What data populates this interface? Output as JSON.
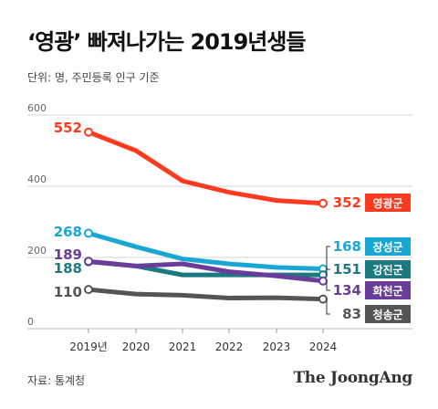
{
  "title": "‘영광’ 빠져나가는 2019년생들",
  "unit_note": "단위: 명, 주민등록 인구 기준",
  "source_note": "자료: 통계청",
  "brand": "The JoongAng",
  "chart_data": {
    "type": "line",
    "x": [
      "2019년",
      "2020",
      "2021",
      "2022",
      "2023",
      "2024"
    ],
    "ylim": [
      0,
      600
    ],
    "yticks": [
      0,
      200,
      400,
      600
    ],
    "grid": true,
    "series": [
      {
        "name": "영광군",
        "color": "#ff3b1f",
        "values": [
          552,
          500,
          415,
          383,
          360,
          352
        ]
      },
      {
        "name": "장성군",
        "color": "#1aa6d3",
        "values": [
          268,
          230,
          196,
          182,
          172,
          168
        ]
      },
      {
        "name": "강진군",
        "color": "#1b7a80",
        "values": [
          188,
          176,
          151,
          151,
          151,
          151
        ]
      },
      {
        "name": "화천군",
        "color": "#6a3d9a",
        "values": [
          189,
          176,
          182,
          160,
          148,
          134
        ]
      },
      {
        "name": "청송군",
        "color": "#555555",
        "values": [
          110,
          97,
          94,
          86,
          87,
          83
        ]
      }
    ],
    "start_labels": [
      "552",
      "268",
      "188",
      "189",
      "110"
    ],
    "end_labels": [
      "352",
      "168",
      "151",
      "134",
      "83"
    ]
  }
}
